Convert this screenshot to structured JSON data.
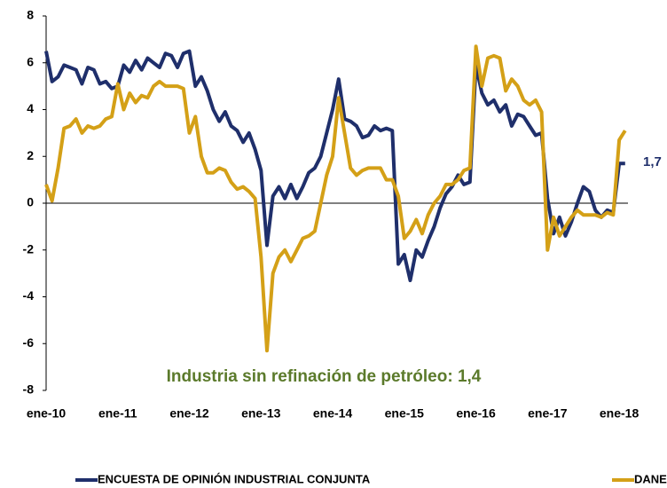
{
  "chart_data": {
    "type": "line",
    "categories": [
      "ene-10",
      null,
      null,
      null,
      null,
      null,
      null,
      null,
      null,
      null,
      null,
      null,
      "ene-11",
      null,
      null,
      null,
      null,
      null,
      null,
      null,
      null,
      null,
      null,
      null,
      "ene-12",
      null,
      null,
      null,
      null,
      null,
      null,
      null,
      null,
      null,
      null,
      null,
      "ene-13",
      null,
      null,
      null,
      null,
      null,
      null,
      null,
      null,
      null,
      null,
      null,
      "ene-14",
      null,
      null,
      null,
      null,
      null,
      null,
      null,
      null,
      null,
      null,
      null,
      "ene-15",
      null,
      null,
      null,
      null,
      null,
      null,
      null,
      null,
      null,
      null,
      null,
      "ene-16",
      null,
      null,
      null,
      null,
      null,
      null,
      null,
      null,
      null,
      null,
      null,
      "ene-17",
      null,
      null,
      null,
      null,
      null,
      null,
      null,
      null,
      null,
      null,
      null,
      "ene-18",
      null
    ],
    "series": [
      {
        "name": "ENCUESTA DE OPINIÓN INDUSTRIAL CONJUNTA",
        "color": "#1f2f6b",
        "values": [
          6.5,
          5.2,
          5.4,
          5.9,
          5.8,
          5.7,
          5.1,
          5.8,
          5.7,
          5.1,
          5.2,
          4.9,
          5.0,
          5.9,
          5.6,
          6.1,
          5.7,
          6.2,
          6.0,
          5.8,
          6.4,
          6.3,
          5.8,
          6.4,
          6.5,
          5.0,
          5.4,
          4.8,
          4.0,
          3.5,
          3.9,
          3.3,
          3.1,
          2.6,
          3.0,
          2.3,
          1.4,
          -1.8,
          0.3,
          0.7,
          0.2,
          0.8,
          0.2,
          0.7,
          1.3,
          1.5,
          2.0,
          3.0,
          4.0,
          5.3,
          3.6,
          3.5,
          3.3,
          2.8,
          2.9,
          3.3,
          3.1,
          3.2,
          3.1,
          -2.6,
          -2.2,
          -3.3,
          -2.0,
          -2.3,
          -1.6,
          -1.0,
          -0.2,
          0.4,
          0.7,
          1.2,
          0.8,
          0.9,
          5.9,
          4.7,
          4.2,
          4.4,
          3.9,
          4.2,
          3.3,
          3.8,
          3.7,
          3.3,
          2.9,
          3.0,
          0.2,
          -1.3,
          -0.6,
          -1.4,
          -0.8,
          0.0,
          0.7,
          0.5,
          -0.3,
          -0.6,
          -0.3,
          -0.4,
          1.7,
          1.7
        ]
      },
      {
        "name": "DANE",
        "color": "#d4a017",
        "values": [
          0.8,
          0.1,
          1.5,
          3.2,
          3.3,
          3.6,
          3.0,
          3.3,
          3.2,
          3.3,
          3.6,
          3.7,
          5.1,
          4.0,
          4.7,
          4.3,
          4.6,
          4.5,
          5.0,
          5.2,
          5.0,
          5.0,
          5.0,
          4.9,
          3.0,
          3.7,
          2.0,
          1.3,
          1.3,
          1.5,
          1.4,
          0.9,
          0.6,
          0.7,
          0.5,
          0.2,
          -2.3,
          -6.3,
          -3.0,
          -2.3,
          -2.0,
          -2.5,
          -2.0,
          -1.5,
          -1.4,
          -1.2,
          0.0,
          1.2,
          2.0,
          4.5,
          3.0,
          1.5,
          1.2,
          1.4,
          1.5,
          1.5,
          1.5,
          1.0,
          1.0,
          0.3,
          -1.5,
          -1.2,
          -0.7,
          -1.3,
          -0.5,
          0.0,
          0.3,
          0.8,
          0.8,
          1.0,
          1.4,
          1.5,
          6.7,
          5.0,
          6.2,
          6.3,
          6.2,
          4.8,
          5.3,
          5.0,
          4.4,
          4.2,
          4.4,
          3.9,
          -2.0,
          -0.6,
          -1.4,
          -1.0,
          -0.6,
          -0.3,
          -0.5,
          -0.5,
          -0.5,
          -0.6,
          -0.4,
          -0.5,
          2.7,
          3.1
        ]
      }
    ],
    "ylim": [
      -8,
      8
    ],
    "yticks": [
      -8,
      -6,
      -4,
      -2,
      0,
      2,
      4,
      6,
      8
    ],
    "annotations": [
      "1,7",
      "Industria sin refinación de petróleo:  1,4"
    ],
    "legend": "bottom"
  }
}
